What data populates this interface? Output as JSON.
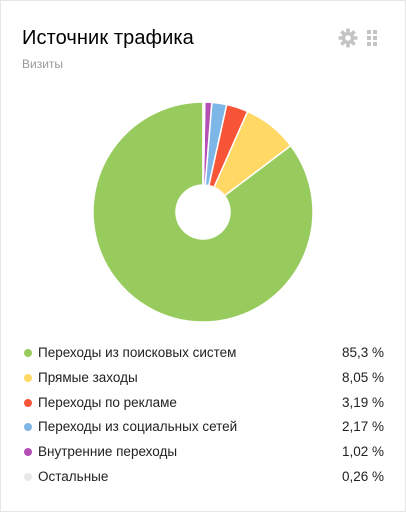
{
  "widget": {
    "title": "Источник трафика",
    "subtitle": "Визиты",
    "settings_icon": "gear-icon",
    "drag_icon": "drag-handle-icon"
  },
  "chart_data": {
    "type": "pie",
    "donut": true,
    "categories": [
      "Переходы из поисковых систем",
      "Прямые заходы",
      "Переходы по рекламе",
      "Переходы из социальных сетей",
      "Внутренние переходы",
      "Остальные"
    ],
    "values": [
      85.3,
      8.05,
      3.19,
      2.17,
      1.02,
      0.26
    ],
    "value_labels": [
      "85,3 %",
      "8,05 %",
      "3,19 %",
      "2,17 %",
      "1,02 %",
      "0,26 %"
    ],
    "colors": [
      "#97cb5e",
      "#ffd866",
      "#f85538",
      "#7fb6e8",
      "#b44fb6",
      "#e8e8e8"
    ],
    "legend_placement": "bottom"
  }
}
